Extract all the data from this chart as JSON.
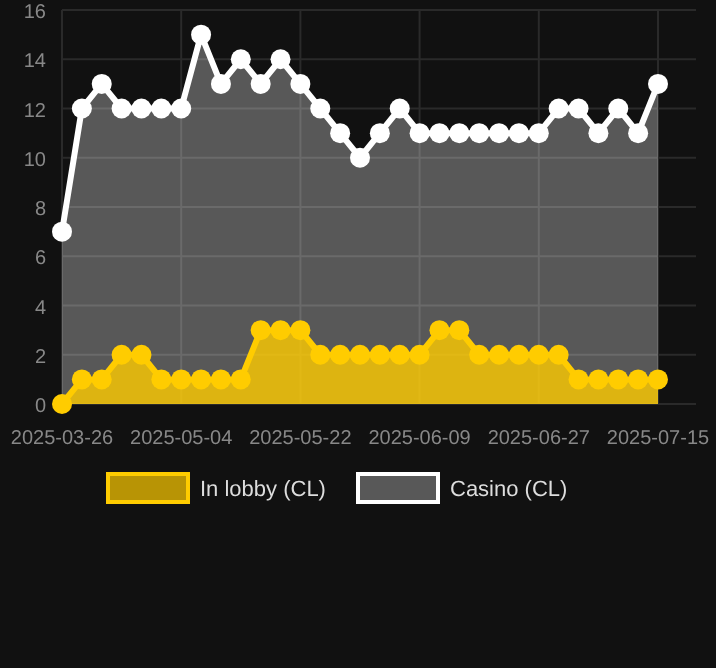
{
  "chart_data": {
    "type": "area",
    "categories": [
      "2025-03-26",
      null,
      null,
      null,
      null,
      null,
      "2025-05-04",
      null,
      null,
      null,
      null,
      null,
      "2025-05-22",
      null,
      null,
      null,
      null,
      null,
      "2025-06-09",
      null,
      null,
      null,
      null,
      null,
      "2025-06-27",
      null,
      null,
      null,
      null,
      null,
      "2025-07-15"
    ],
    "series": [
      {
        "name": "Casino (CL)",
        "color": "#ffffff",
        "values": [
          7,
          12,
          13,
          12,
          12,
          12,
          12,
          15,
          13,
          14,
          13,
          14,
          13,
          12,
          11,
          10,
          11,
          12,
          11,
          11,
          11,
          11,
          11,
          11,
          11,
          12,
          12,
          11,
          12,
          11,
          13
        ]
      },
      {
        "name": "In lobby (CL)",
        "color": "#ffcc00",
        "values": [
          0,
          1,
          1,
          2,
          2,
          1,
          1,
          1,
          1,
          1,
          3,
          3,
          3,
          2,
          2,
          2,
          2,
          2,
          2,
          3,
          3,
          2,
          2,
          2,
          2,
          2,
          1,
          1,
          1,
          1,
          1
        ]
      }
    ],
    "ylim": [
      0,
      16
    ],
    "yticks": [
      0,
      2,
      4,
      6,
      8,
      10,
      12,
      14,
      16
    ],
    "grid": true,
    "legend": "bottom",
    "marker": "circle"
  }
}
